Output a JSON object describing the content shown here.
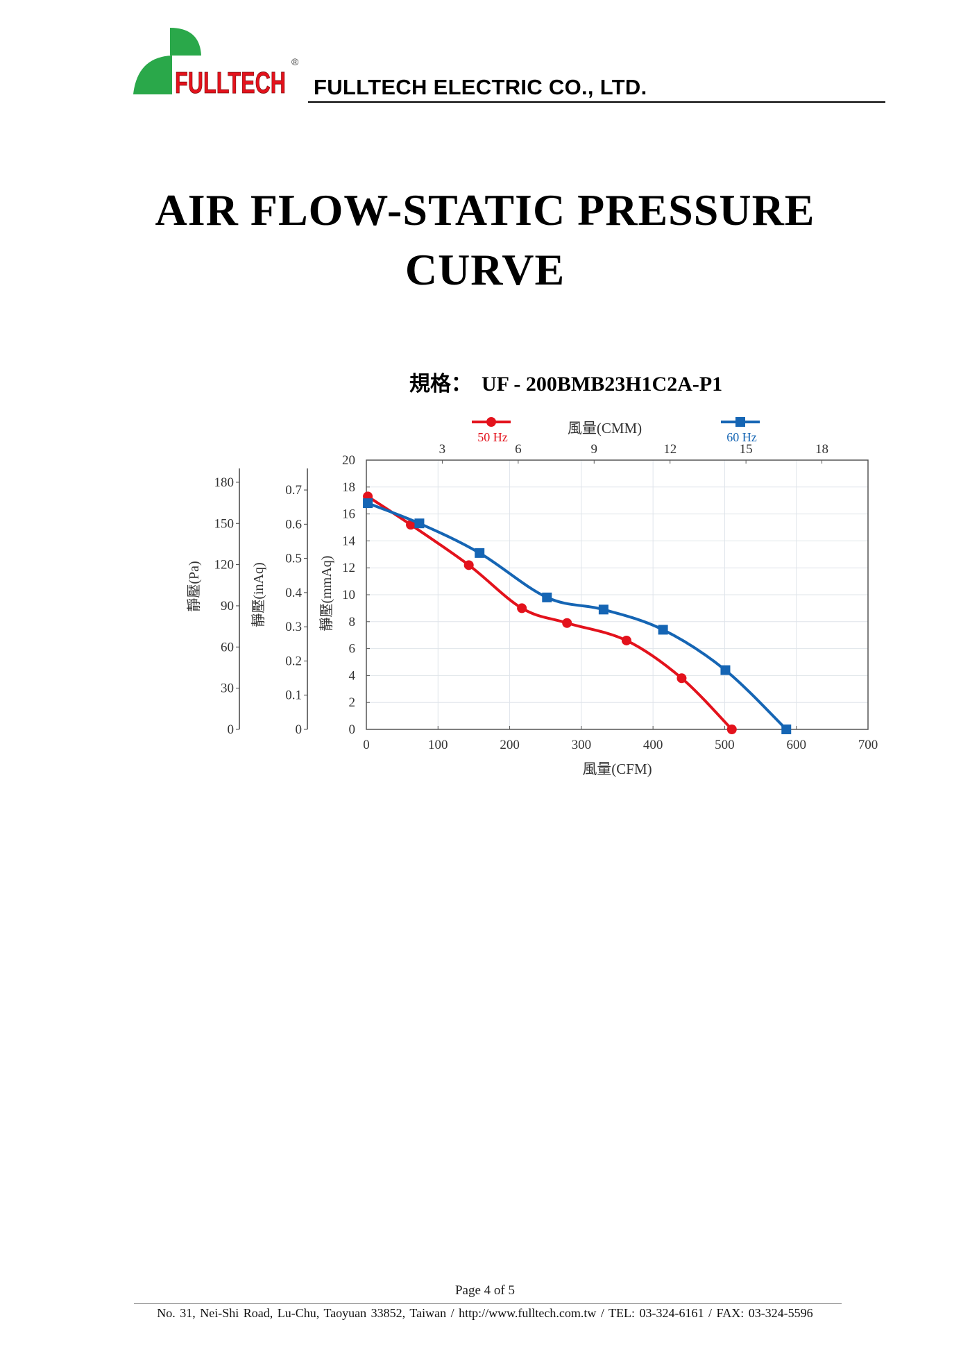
{
  "header": {
    "logo_text": "FULLTECH",
    "logo_mark": "®",
    "company_name": "FULLTECH ELECTRIC CO., LTD."
  },
  "title": {
    "line1": "AIR FLOW-STATIC PRESSURE",
    "line2": "CURVE"
  },
  "spec": {
    "label": "規格",
    "colon": "：",
    "model": "UF - 200BMB23H1C2A-P1"
  },
  "chart_data": {
    "type": "line",
    "title": "",
    "x": {
      "label": "風量(CFM)",
      "range": [
        0,
        700
      ],
      "ticks": [
        0,
        100,
        200,
        300,
        400,
        500,
        600,
        700
      ]
    },
    "x2": {
      "label": "風量(CMM)",
      "ticks": [
        3,
        6,
        9,
        12,
        15,
        18
      ]
    },
    "y": {
      "label": "靜壓(mmAq)",
      "range": [
        0,
        20
      ],
      "ticks": [
        0,
        2,
        4,
        6,
        8,
        10,
        12,
        14,
        16,
        18,
        20
      ]
    },
    "y_inAq": {
      "label": "靜壓(inAq)",
      "ticks": [
        "0",
        "0.1",
        "0.2",
        "0.3",
        "0.4",
        "0.5",
        "0.6",
        "0.7"
      ]
    },
    "y_Pa": {
      "label": "靜壓(Pa)",
      "ticks": [
        "0",
        "30",
        "60",
        "90",
        "120",
        "150",
        "180"
      ]
    },
    "grid": true,
    "legend_position": "top",
    "series": [
      {
        "name": "50 Hz",
        "color": "#e3121c",
        "marker": "circle",
        "points": [
          [
            2,
            17.3
          ],
          [
            62,
            15.2
          ],
          [
            143,
            12.2
          ],
          [
            217,
            9.0
          ],
          [
            280,
            7.9
          ],
          [
            363,
            6.6
          ],
          [
            440,
            3.8
          ],
          [
            510,
            0
          ]
        ]
      },
      {
        "name": "60 Hz",
        "color": "#1565b4",
        "marker": "square",
        "points": [
          [
            2,
            16.8
          ],
          [
            74,
            15.3
          ],
          [
            158,
            13.1
          ],
          [
            252,
            9.8
          ],
          [
            331,
            8.9
          ],
          [
            414,
            7.4
          ],
          [
            501,
            4.4
          ],
          [
            586,
            0
          ]
        ]
      }
    ]
  },
  "footer": {
    "page": "Page  4  of  5",
    "address": "No. 31, Nei-Shi Road, Lu-Chu, Taoyuan 33852, Taiwan / http://www.fulltech.com.tw / TEL: 03-324-6161 / FAX: 03-324-5596"
  }
}
